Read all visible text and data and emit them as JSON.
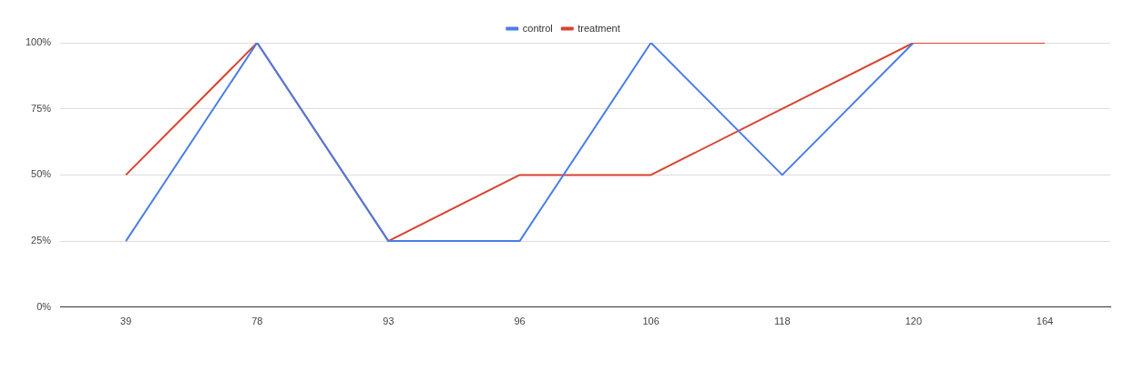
{
  "chart_data": {
    "type": "line",
    "categories": [
      "39",
      "78",
      "93",
      "96",
      "106",
      "118",
      "120",
      "164"
    ],
    "series": [
      {
        "name": "control",
        "color": "#4a7de6",
        "values": [
          25,
          100,
          25,
          25,
          100,
          50,
          100,
          null
        ]
      },
      {
        "name": "treatment",
        "color": "#d9432f",
        "values": [
          50,
          100,
          25,
          50,
          50,
          75,
          100,
          100
        ]
      }
    ],
    "ylim": [
      0,
      100
    ],
    "yticks": [
      {
        "value": 0,
        "label": "0%"
      },
      {
        "value": 25,
        "label": "25%"
      },
      {
        "value": 50,
        "label": "50%"
      },
      {
        "value": 75,
        "label": "75%"
      },
      {
        "value": 100,
        "label": "100%"
      }
    ],
    "grid": "y",
    "legend": "top",
    "marker": "none",
    "line_style": "solid"
  }
}
